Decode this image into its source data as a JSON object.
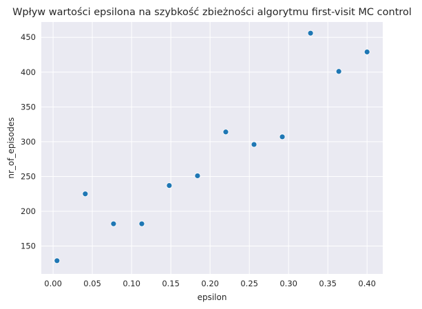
{
  "chart_data": {
    "type": "scatter",
    "title": "Wpływ wartości epsilona na szybkość zbieżności algorytmu first-visit MC control",
    "xlabel": "epsilon",
    "ylabel": "nr_of_episodes",
    "xlim": [
      -0.015,
      0.42
    ],
    "ylim": [
      110,
      472
    ],
    "xticks": [
      0.0,
      0.05,
      0.1,
      0.15,
      0.2,
      0.25,
      0.3,
      0.35,
      0.4
    ],
    "xtick_labels": [
      "0.00",
      "0.05",
      "0.10",
      "0.15",
      "0.20",
      "0.25",
      "0.30",
      "0.35",
      "0.40"
    ],
    "yticks": [
      150,
      200,
      250,
      300,
      350,
      400,
      450
    ],
    "ytick_labels": [
      "150",
      "200",
      "250",
      "300",
      "350",
      "400",
      "450"
    ],
    "grid": true,
    "colors": {
      "point": "#1f77b4",
      "plot_background": "#eaeaf2",
      "grid": "#ffffff"
    },
    "points": [
      {
        "x": 0.005,
        "y": 129
      },
      {
        "x": 0.041,
        "y": 225
      },
      {
        "x": 0.077,
        "y": 182
      },
      {
        "x": 0.113,
        "y": 182
      },
      {
        "x": 0.148,
        "y": 237
      },
      {
        "x": 0.184,
        "y": 251
      },
      {
        "x": 0.22,
        "y": 314
      },
      {
        "x": 0.256,
        "y": 296
      },
      {
        "x": 0.292,
        "y": 307
      },
      {
        "x": 0.328,
        "y": 456
      },
      {
        "x": 0.364,
        "y": 401
      },
      {
        "x": 0.4,
        "y": 429
      }
    ]
  }
}
